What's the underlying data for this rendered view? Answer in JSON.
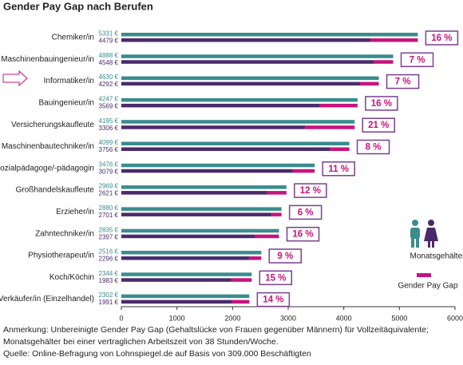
{
  "chart_data": {
    "type": "paygap",
    "title": "Gender Pay Gap nach Berufen",
    "categories": [
      "Chemiker/in",
      "Maschinenbauingenieur/in",
      "Informatiker/in",
      "Bauingenieur/in",
      "Versicherungskaufleute",
      "Maschinenbautechniker/in",
      "Sozialpädagoge/-pädagogin",
      "Großhandelskaufleute",
      "Erzieher/in",
      "Zahntechniker/in",
      "Physiotherapeut/in",
      "Koch/Köchin",
      "Verkäufer/in (Einzelhandel)"
    ],
    "series": [
      {
        "color": "#3a8c8e",
        "values": [
          5331,
          4888,
          4630,
          4247,
          4195,
          4099,
          3476,
          2969,
          2880,
          2835,
          2516,
          2344,
          2302
        ],
        "value_labels": [
          "5331 €",
          "4888 €",
          "4630 €",
          "4247 €",
          "4195 €",
          "4099 €",
          "3476 €",
          "2969 €",
          "2880 €",
          "2835 €",
          "2516 €",
          "2344 €",
          "2302 €"
        ]
      },
      {
        "color": "#4b2a6b",
        "values": [
          4479,
          4548,
          4292,
          3569,
          3306,
          3756,
          3079,
          2621,
          2701,
          2397,
          2296,
          1983,
          1991
        ],
        "value_labels": [
          "4479 €",
          "4548 €",
          "4292 €",
          "3569 €",
          "3306 €",
          "3756 €",
          "3079 €",
          "2621 €",
          "2701 €",
          "2397 €",
          "2296 €",
          "1983 €",
          "1991 €"
        ]
      }
    ],
    "gap": {
      "color": "#c8137e",
      "values": [
        16,
        7,
        7,
        16,
        21,
        8,
        11,
        12,
        6,
        16,
        9,
        15,
        14
      ],
      "value_labels": [
        "16 %",
        "7 %",
        "7 %",
        "16 %",
        "21 %",
        "8 %",
        "11 %",
        "12 %",
        "6 %",
        "16 %",
        "9 %",
        "15 %",
        "14 %"
      ]
    },
    "xlim": [
      0,
      6000
    ],
    "xticks": [
      0,
      1000,
      2000,
      3000,
      4000,
      5000,
      6000
    ],
    "legend": [
      "Monatsgehälter",
      "Gender Pay Gap"
    ],
    "notes": [
      "Anmerkung: Unbereinigte  Gender Pay Gap (Gehaltslücke von Frauen gegenüber Männern) für Vollzeitäquivalente;",
      "Monatsgehälter bei einer vertraglichen Arbeitszeit von 38 Stunden/Woche.",
      "Quelle: Online-Befragung von Lohnspiegel.de auf Basis von 309.000 Beschäftigten"
    ]
  }
}
